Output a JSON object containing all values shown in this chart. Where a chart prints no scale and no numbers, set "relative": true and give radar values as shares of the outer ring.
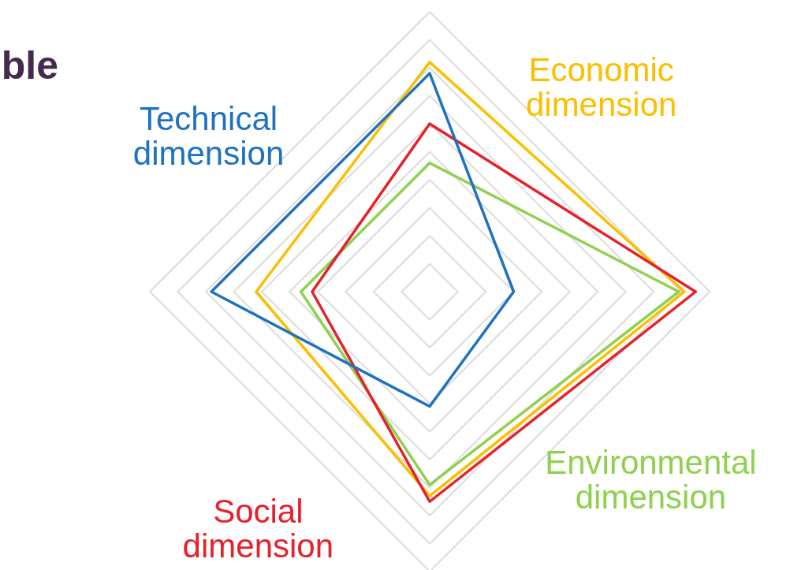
{
  "chart_data": {
    "type": "radar",
    "title": "ble",
    "relative": true,
    "grid": true,
    "categories": [
      "Economic dimension",
      "Environmental dimension",
      "Social dimension",
      "Technical dimension"
    ],
    "series": [
      {
        "color": "#fbbf00",
        "values": [
          0.82,
          0.91,
          0.73,
          0.62
        ]
      },
      {
        "color": "#8fd14f",
        "values": [
          0.46,
          0.89,
          0.69,
          0.46
        ]
      },
      {
        "color": "#e8202a",
        "values": [
          0.6,
          0.95,
          0.75,
          0.42
        ]
      },
      {
        "color": "#1f72c0",
        "values": [
          0.78,
          0.3,
          0.41,
          0.78
        ]
      }
    ]
  }
}
